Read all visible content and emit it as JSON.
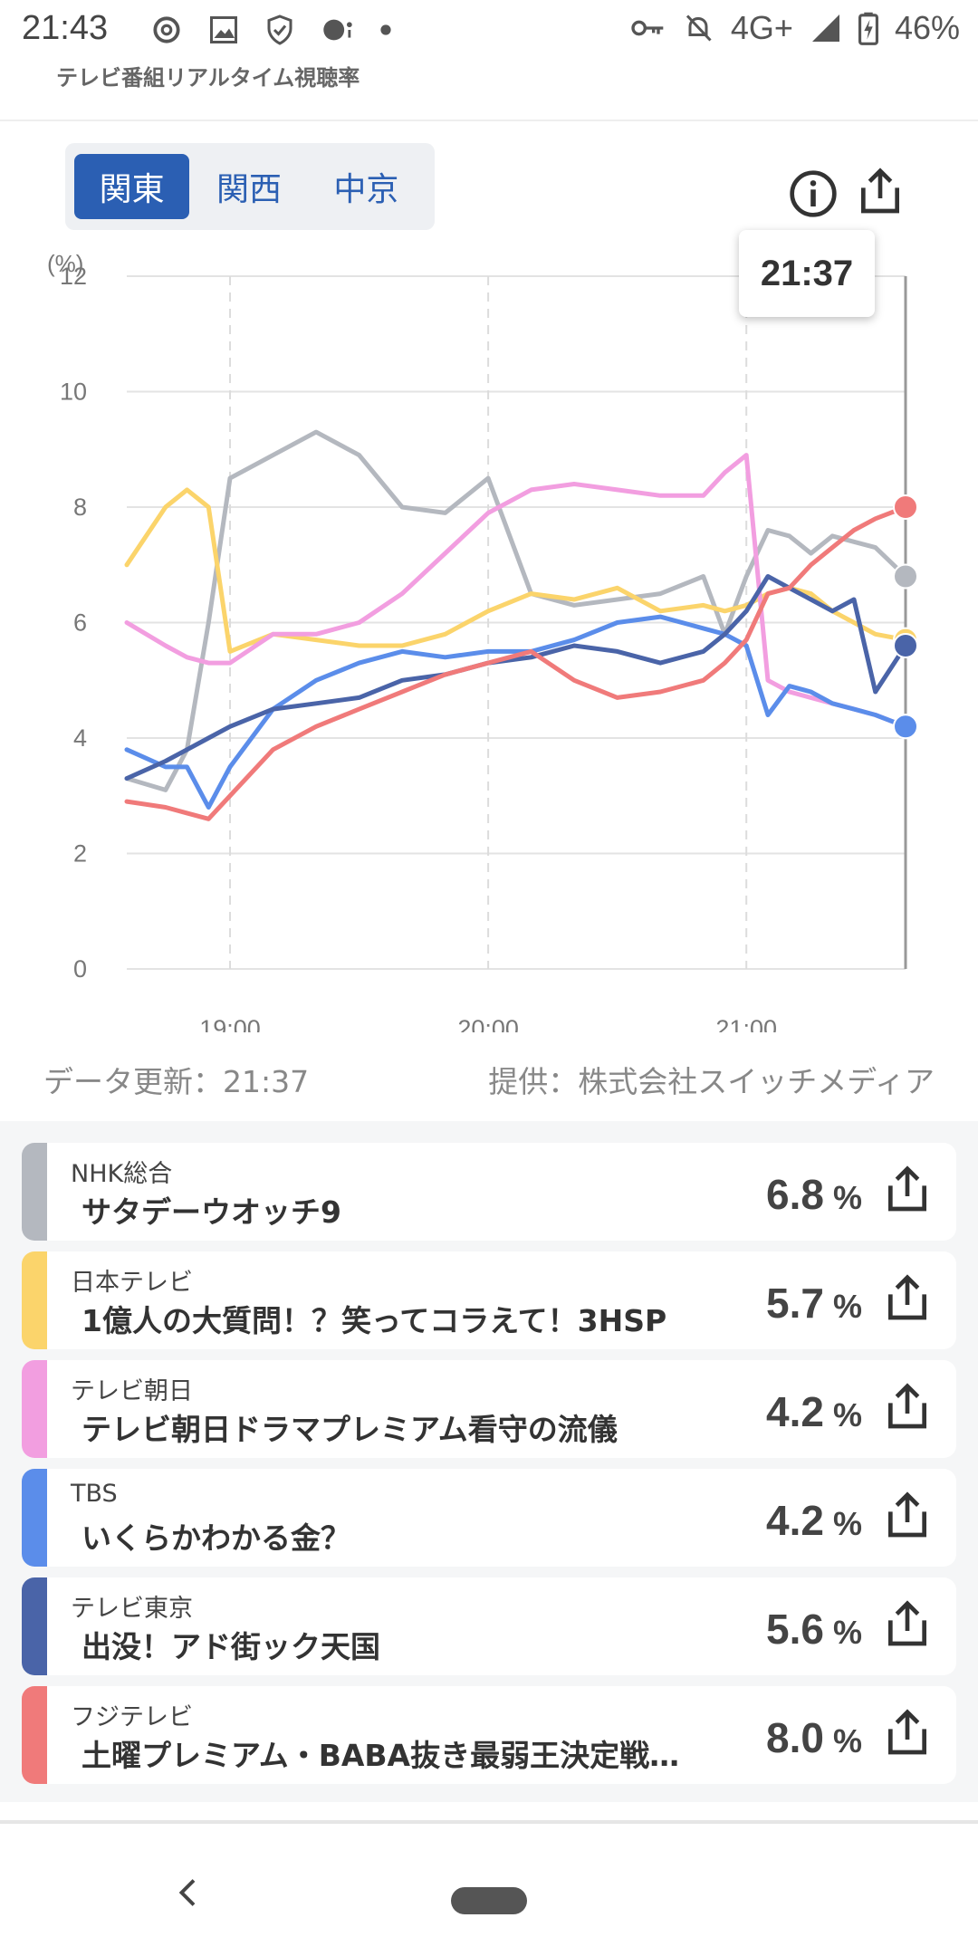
{
  "status_bar": {
    "time": "21:43",
    "network": "4G+",
    "battery": "46%",
    "left_icons": [
      "threads-icon",
      "image-icon",
      "shield-icon",
      "assistant-icon",
      "dot-icon"
    ],
    "right_icons": [
      "vpn-key-icon",
      "bell-off-icon",
      "signal-icon",
      "battery-icon"
    ]
  },
  "app_title": "テレビ番組リアルタイム視聴率",
  "region_tabs": [
    {
      "label": "関東",
      "active": true
    },
    {
      "label": "関西",
      "active": false
    },
    {
      "label": "中京",
      "active": false
    }
  ],
  "icons": {
    "info": "info-icon",
    "share": "share-icon",
    "back": "back-chevron-icon"
  },
  "tooltip_time": "21:37",
  "chart_data": {
    "type": "line",
    "ylabel": "(%)",
    "ylim": [
      0,
      12
    ],
    "yticks": [
      "0",
      "2",
      "4",
      "6",
      "8",
      "10",
      "12"
    ],
    "xlim": [
      "18:36",
      "21:37"
    ],
    "xticks": [
      "19:00",
      "20:00",
      "21:00"
    ],
    "grid": true,
    "marker_time": "21:37",
    "x": [
      "18:36",
      "18:45",
      "18:50",
      "18:55",
      "19:00",
      "19:10",
      "19:20",
      "19:30",
      "19:40",
      "19:50",
      "20:00",
      "20:10",
      "20:20",
      "20:30",
      "20:40",
      "20:50",
      "20:55",
      "21:00",
      "21:05",
      "21:10",
      "21:15",
      "21:20",
      "21:25",
      "21:30",
      "21:37"
    ],
    "series": [
      {
        "name": "NHK総合",
        "color": "#b4b8bf",
        "values": [
          3.3,
          3.1,
          3.8,
          6.0,
          8.5,
          8.9,
          9.3,
          8.9,
          8.0,
          7.9,
          8.5,
          6.5,
          6.3,
          6.4,
          6.5,
          6.8,
          5.8,
          6.8,
          7.6,
          7.5,
          7.2,
          7.5,
          7.4,
          7.3,
          6.8
        ]
      },
      {
        "name": "日本テレビ",
        "color": "#fbd46b",
        "values": [
          7.0,
          8.0,
          8.3,
          8.0,
          5.5,
          5.8,
          5.7,
          5.6,
          5.6,
          5.8,
          6.2,
          6.5,
          6.4,
          6.6,
          6.2,
          6.3,
          6.2,
          6.3,
          6.5,
          6.6,
          6.5,
          6.2,
          6.0,
          5.8,
          5.7
        ]
      },
      {
        "name": "テレビ朝日",
        "color": "#f29ee0",
        "values": [
          6.0,
          5.6,
          5.4,
          5.3,
          5.3,
          5.8,
          5.8,
          6.0,
          6.5,
          7.2,
          7.9,
          8.3,
          8.4,
          8.3,
          8.2,
          8.2,
          8.6,
          8.9,
          5.0,
          4.8,
          4.7,
          4.6,
          4.5,
          4.4,
          4.2
        ]
      },
      {
        "name": "TBS",
        "color": "#5b8dea",
        "values": [
          3.8,
          3.5,
          3.5,
          2.8,
          3.5,
          4.5,
          5.0,
          5.3,
          5.5,
          5.4,
          5.5,
          5.5,
          5.7,
          6.0,
          6.1,
          5.9,
          5.8,
          5.6,
          4.4,
          4.9,
          4.8,
          4.6,
          4.5,
          4.4,
          4.2
        ]
      },
      {
        "name": "テレビ東京",
        "color": "#4a64a8",
        "values": [
          3.3,
          3.6,
          3.8,
          4.0,
          4.2,
          4.5,
          4.6,
          4.7,
          5.0,
          5.1,
          5.3,
          5.4,
          5.6,
          5.5,
          5.3,
          5.5,
          5.8,
          6.2,
          6.8,
          6.6,
          6.4,
          6.2,
          6.4,
          4.8,
          5.6
        ]
      },
      {
        "name": "フジテレビ",
        "color": "#f07a7a",
        "values": [
          2.9,
          2.8,
          2.7,
          2.6,
          3.0,
          3.8,
          4.2,
          4.5,
          4.8,
          5.1,
          5.3,
          5.5,
          5.0,
          4.7,
          4.8,
          5.0,
          5.3,
          5.7,
          6.5,
          6.6,
          7.0,
          7.3,
          7.6,
          7.8,
          8.0
        ]
      }
    ]
  },
  "update_text": "データ更新：21:37",
  "provider_text": "提供：株式会社スイッチメディア",
  "programs": [
    {
      "channel": "NHK総合",
      "title": "サタデーウオッチ9",
      "rating": "6.8",
      "unit": "%",
      "color": "#b4b8bf"
    },
    {
      "channel": "日本テレビ",
      "title": "1億人の大質問！？笑ってコラえて！3HSP",
      "rating": "5.7",
      "unit": "%",
      "color": "#fbd46b"
    },
    {
      "channel": "テレビ朝日",
      "title": "テレビ朝日ドラマプレミアム看守の流儀",
      "rating": "4.2",
      "unit": "%",
      "color": "#f29ee0"
    },
    {
      "channel": "TBS",
      "title": "いくらかわかる金？",
      "rating": "4.2",
      "unit": "%",
      "color": "#5b8dea"
    },
    {
      "channel": "テレビ東京",
      "title": "出没！アド街ック天国",
      "rating": "5.6",
      "unit": "%",
      "color": "#4a64a8"
    },
    {
      "channel": "フジテレビ",
      "title": "土曜プレミアム・BABA抜き最弱王決定戦…",
      "rating": "8.0",
      "unit": "%",
      "color": "#f07a7a"
    }
  ]
}
